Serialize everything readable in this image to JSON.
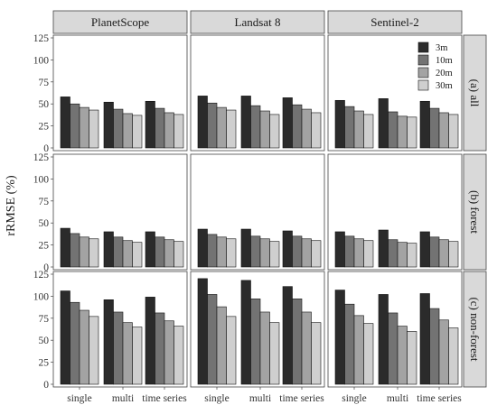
{
  "chart_data": {
    "type": "bar",
    "ylabel": "rRMSE (%)",
    "xlabel": "",
    "ylim": [
      0,
      125
    ],
    "yticks": [
      0,
      25,
      50,
      75,
      100,
      125
    ],
    "column_facets": [
      "PlanetScope",
      "Landsat 8",
      "Sentinel-2"
    ],
    "row_facets": [
      "(a) all",
      "(b) forest",
      "(c) non-forest"
    ],
    "categories": [
      "single",
      "multi",
      "time series"
    ],
    "legend": {
      "placement": "top-right",
      "entries": [
        "3m",
        "10m",
        "20m",
        "30m"
      ]
    },
    "colors": {
      "3m": "#2b2b2b",
      "10m": "#737373",
      "20m": "#a3a3a3",
      "30m": "#cfcfcf"
    },
    "panels": [
      {
        "row": "(a) all",
        "column": "PlanetScope",
        "series": [
          {
            "name": "3m",
            "values": [
              58,
              52,
              53
            ]
          },
          {
            "name": "10m",
            "values": [
              50,
              44,
              45
            ]
          },
          {
            "name": "20m",
            "values": [
              46,
              39,
              40
            ]
          },
          {
            "name": "30m",
            "values": [
              43,
              37,
              38
            ]
          }
        ]
      },
      {
        "row": "(a) all",
        "column": "Landsat 8",
        "series": [
          {
            "name": "3m",
            "values": [
              59,
              59,
              57
            ]
          },
          {
            "name": "10m",
            "values": [
              51,
              48,
              49
            ]
          },
          {
            "name": "20m",
            "values": [
              46,
              42,
              44
            ]
          },
          {
            "name": "30m",
            "values": [
              43,
              38,
              40
            ]
          }
        ]
      },
      {
        "row": "(a) all",
        "column": "Sentinel-2",
        "series": [
          {
            "name": "3m",
            "values": [
              54,
              56,
              53
            ]
          },
          {
            "name": "10m",
            "values": [
              47,
              41,
              45
            ]
          },
          {
            "name": "20m",
            "values": [
              42,
              36,
              40
            ]
          },
          {
            "name": "30m",
            "values": [
              38,
              35,
              38
            ]
          }
        ]
      },
      {
        "row": "(b) forest",
        "column": "PlanetScope",
        "series": [
          {
            "name": "3m",
            "values": [
              44,
              40,
              40
            ]
          },
          {
            "name": "10m",
            "values": [
              38,
              34,
              34
            ]
          },
          {
            "name": "20m",
            "values": [
              34,
              30,
              31
            ]
          },
          {
            "name": "30m",
            "values": [
              32,
              28,
              29
            ]
          }
        ]
      },
      {
        "row": "(b) forest",
        "column": "Landsat 8",
        "series": [
          {
            "name": "3m",
            "values": [
              43,
              43,
              41
            ]
          },
          {
            "name": "10m",
            "values": [
              37,
              35,
              35
            ]
          },
          {
            "name": "20m",
            "values": [
              34,
              32,
              32
            ]
          },
          {
            "name": "30m",
            "values": [
              32,
              29,
              30
            ]
          }
        ]
      },
      {
        "row": "(b) forest",
        "column": "Sentinel-2",
        "series": [
          {
            "name": "3m",
            "values": [
              40,
              42,
              40
            ]
          },
          {
            "name": "10m",
            "values": [
              35,
              31,
              34
            ]
          },
          {
            "name": "20m",
            "values": [
              32,
              28,
              31
            ]
          },
          {
            "name": "30m",
            "values": [
              30,
              27,
              29
            ]
          }
        ]
      },
      {
        "row": "(c) non-forest",
        "column": "PlanetScope",
        "series": [
          {
            "name": "3m",
            "values": [
              106,
              96,
              99
            ]
          },
          {
            "name": "10m",
            "values": [
              93,
              82,
              81
            ]
          },
          {
            "name": "20m",
            "values": [
              84,
              70,
              72
            ]
          },
          {
            "name": "30m",
            "values": [
              77,
              65,
              66
            ]
          }
        ]
      },
      {
        "row": "(c) non-forest",
        "column": "Landsat 8",
        "series": [
          {
            "name": "3m",
            "values": [
              120,
              118,
              111
            ]
          },
          {
            "name": "10m",
            "values": [
              102,
              97,
              97
            ]
          },
          {
            "name": "20m",
            "values": [
              88,
              82,
              82
            ]
          },
          {
            "name": "30m",
            "values": [
              77,
              70,
              70
            ]
          }
        ]
      },
      {
        "row": "(c) non-forest",
        "column": "Sentinel-2",
        "series": [
          {
            "name": "3m",
            "values": [
              107,
              102,
              103
            ]
          },
          {
            "name": "10m",
            "values": [
              91,
              81,
              86
            ]
          },
          {
            "name": "20m",
            "values": [
              78,
              66,
              73
            ]
          },
          {
            "name": "30m",
            "values": [
              69,
              60,
              64
            ]
          }
        ]
      }
    ]
  }
}
